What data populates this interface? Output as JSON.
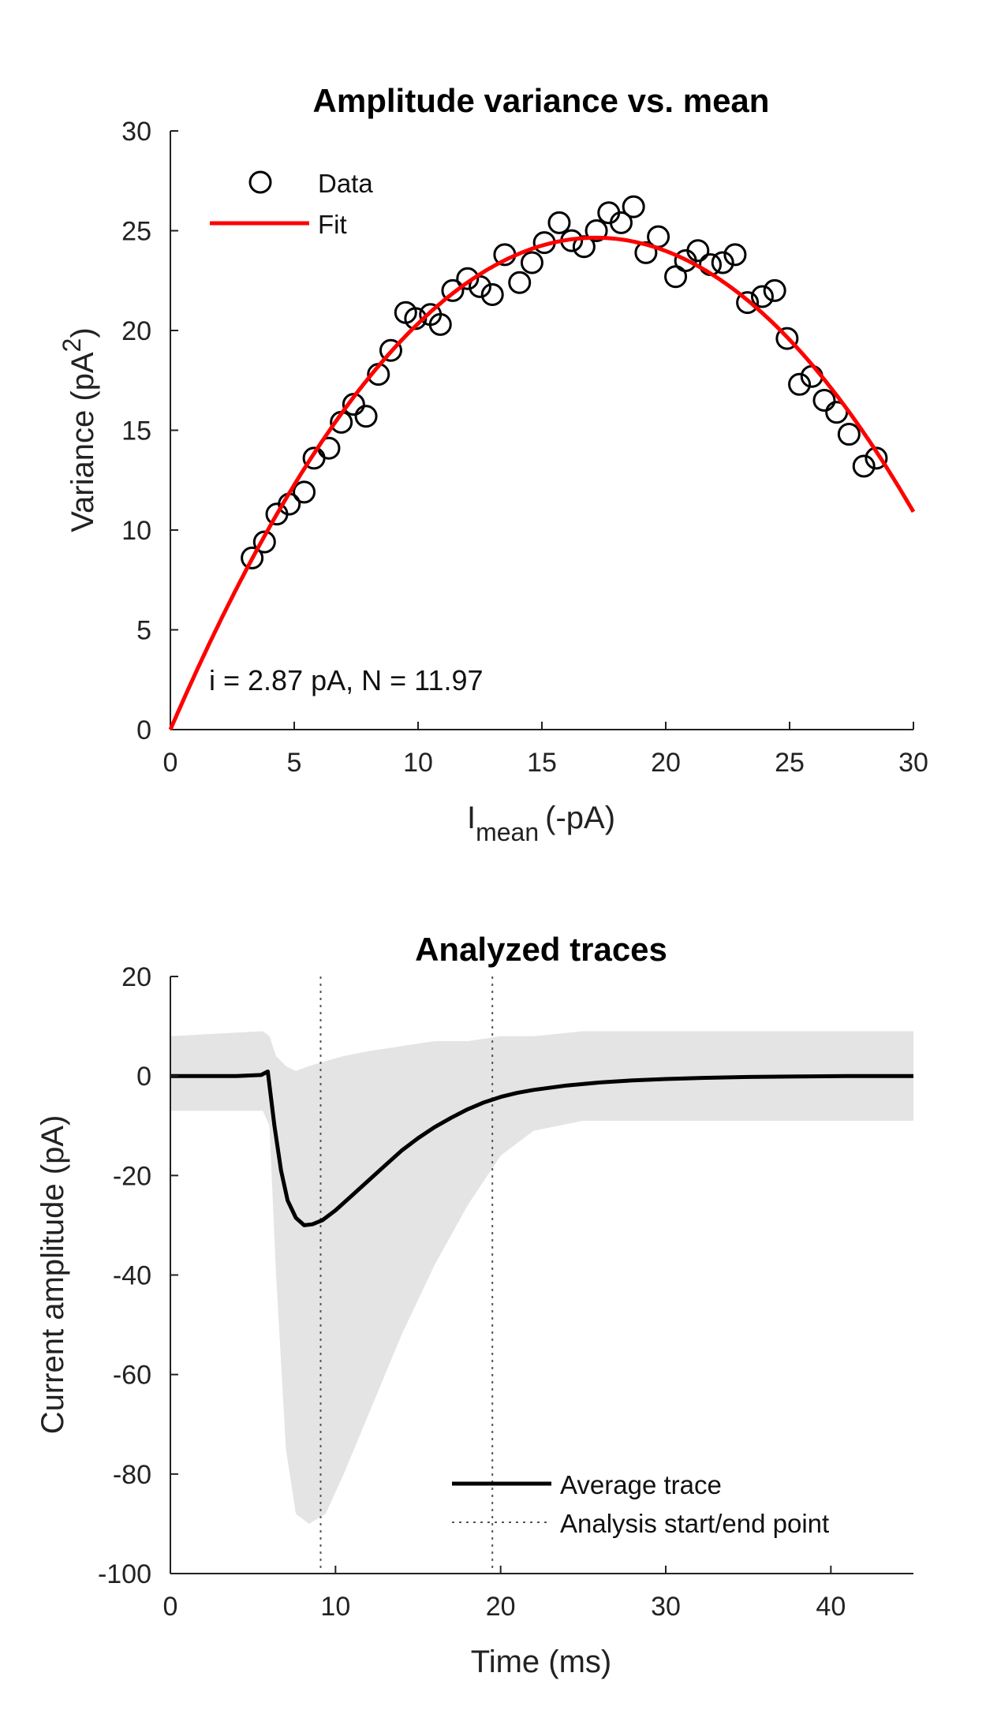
{
  "chart_data": [
    {
      "type": "scatter",
      "title": "Amplitude variance vs. mean",
      "xlabel": "I",
      "xlabel_sub": "mean",
      "xlabel_unit": "(-pA)",
      "ylabel": "Variance (pA",
      "ylabel_sup": "2",
      "ylabel_end": ")",
      "xlim": [
        0,
        30
      ],
      "ylim": [
        0,
        30
      ],
      "xticks": [
        0,
        5,
        10,
        15,
        20,
        25,
        30
      ],
      "yticks": [
        0,
        5,
        10,
        15,
        20,
        25,
        30
      ],
      "legend_position": "top-left",
      "annotation": "i = 2.87 pA, N = 11.97",
      "series": [
        {
          "name": "Data",
          "kind": "scatter",
          "color": "#000000",
          "x": [
            3.3,
            3.8,
            4.3,
            4.8,
            5.4,
            5.8,
            6.4,
            6.9,
            7.4,
            7.9,
            8.4,
            8.9,
            9.5,
            9.9,
            10.5,
            10.9,
            11.4,
            12.0,
            12.5,
            13.0,
            13.5,
            14.1,
            14.6,
            15.1,
            15.7,
            16.2,
            16.7,
            17.2,
            17.7,
            18.2,
            18.7,
            19.2,
            19.7,
            20.4,
            20.8,
            21.3,
            21.8,
            22.3,
            22.8,
            23.3,
            23.9,
            24.4,
            24.9,
            25.4,
            25.9,
            26.4,
            26.9,
            27.4,
            28.0,
            28.5
          ],
          "y": [
            8.6,
            9.4,
            10.8,
            11.3,
            11.9,
            13.6,
            14.1,
            15.4,
            16.3,
            15.7,
            17.8,
            19.0,
            20.9,
            20.6,
            20.8,
            20.3,
            22.0,
            22.6,
            22.2,
            21.8,
            23.8,
            22.4,
            23.4,
            24.4,
            25.4,
            24.5,
            24.2,
            25.0,
            25.9,
            25.4,
            26.2,
            23.9,
            24.7,
            22.7,
            23.5,
            24.0,
            23.3,
            23.4,
            23.8,
            21.4,
            21.7,
            22.0,
            19.6,
            17.3,
            17.7,
            16.5,
            15.9,
            14.8,
            13.2,
            13.6
          ]
        },
        {
          "name": "Fit",
          "kind": "line",
          "color": "#ff0000",
          "model": "variance = i*I - I^2/N",
          "i": 2.87,
          "N": 11.97
        }
      ]
    },
    {
      "type": "line",
      "title": "Analyzed traces",
      "xlabel": "Time (ms)",
      "ylabel": "Current amplitude (pA)",
      "xlim": [
        0,
        45
      ],
      "ylim": [
        -100,
        20
      ],
      "xticks": [
        0,
        10,
        20,
        30,
        40
      ],
      "yticks": [
        20,
        0,
        -20,
        -40,
        -60,
        -80,
        -100
      ],
      "legend_position": "bottom-right",
      "band_color": "#e4e4e4",
      "band": {
        "x": [
          0,
          5.6,
          6.0,
          6.4,
          7.0,
          7.6,
          8.4,
          9.4,
          10.5,
          12,
          14,
          16,
          18,
          20,
          22,
          25,
          30,
          35,
          40,
          45
        ],
        "upper": [
          8,
          9,
          8,
          4,
          2,
          1,
          2,
          3,
          4,
          5,
          6,
          7,
          7,
          8,
          8,
          9,
          9,
          9,
          9,
          9
        ],
        "lower": [
          -7,
          -7,
          -10,
          -40,
          -75,
          -88,
          -90,
          -88,
          -80,
          -68,
          -52,
          -38,
          -26,
          -16,
          -11,
          -9,
          -9,
          -9,
          -9,
          -9
        ]
      },
      "series": [
        {
          "name": "Average trace",
          "kind": "line",
          "color": "#000000",
          "x": [
            0,
            2,
            4,
            5.5,
            5.9,
            6.3,
            6.7,
            7.1,
            7.6,
            8.1,
            8.6,
            9.2,
            10,
            11,
            12,
            13,
            14,
            15,
            16,
            17,
            18,
            19,
            20,
            21,
            22,
            24,
            26,
            28,
            30,
            32,
            35,
            38,
            41,
            45
          ],
          "y": [
            0,
            0,
            0,
            0.2,
            0.9,
            -10,
            -19,
            -25,
            -28.5,
            -30,
            -29.8,
            -29,
            -27,
            -24,
            -21,
            -18,
            -15,
            -12.5,
            -10.3,
            -8.4,
            -6.7,
            -5.3,
            -4.2,
            -3.4,
            -2.8,
            -1.9,
            -1.3,
            -0.9,
            -0.6,
            -0.4,
            -0.2,
            -0.1,
            0,
            0
          ]
        },
        {
          "name": "Analysis start/end point",
          "kind": "vlines",
          "color": "#555555",
          "x": [
            9.1,
            19.5
          ]
        }
      ]
    }
  ]
}
